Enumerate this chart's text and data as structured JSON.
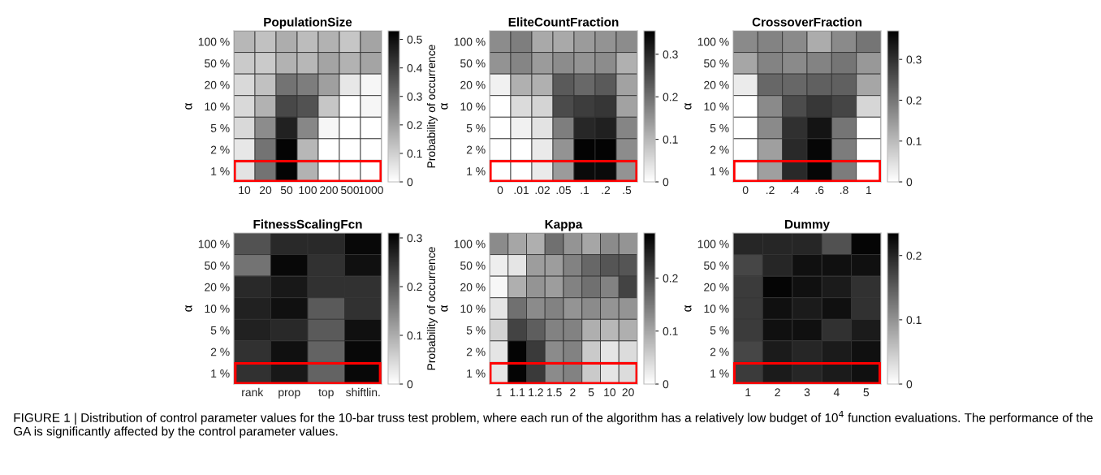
{
  "chart_data": [
    {
      "type": "heatmap",
      "title": "PopulationSize",
      "ylabel": "α",
      "clabel": "Probability of occurrence",
      "categories": [
        "10",
        "20",
        "50",
        "100",
        "200",
        "500",
        "1000"
      ],
      "y_categories": [
        "100 %",
        "50 %",
        "20 %",
        "10 %",
        "5 %",
        "2 %",
        "1 %"
      ],
      "cells": [
        [
          0.15,
          0.13,
          0.17,
          0.14,
          0.16,
          0.12,
          0.19
        ],
        [
          0.11,
          0.11,
          0.16,
          0.15,
          0.19,
          0.16,
          0.19
        ],
        [
          0.08,
          0.13,
          0.29,
          0.27,
          0.2,
          0.05,
          0.02
        ],
        [
          0.08,
          0.16,
          0.38,
          0.36,
          0.12,
          0,
          0.02
        ],
        [
          0.08,
          0.24,
          0.46,
          0.25,
          0.02,
          0,
          0
        ],
        [
          0.05,
          0.29,
          0.52,
          0.15,
          0,
          0,
          0
        ],
        [
          0.06,
          0.29,
          0.52,
          0.16,
          0,
          0,
          0
        ]
      ],
      "clim": [
        0,
        0.53
      ],
      "cticks": [
        0,
        0.1,
        0.2,
        0.3,
        0.4,
        0.5
      ],
      "annotations": [
        "FIGURE 1 | Distribution of control parameter values for the 10-bar truss test problem, where each run of the algorithm has a relatively low budget of 10$^{4}$ function evaluations. The performance of the GA is significantly affected by the control parameter values."
      ]
    },
    {
      "type": "heatmap",
      "title": "EliteCountFraction",
      "ylabel": "α",
      "categories": [
        "0",
        ".01",
        ".02",
        ".05",
        ".1",
        ".2",
        ".5"
      ],
      "y_categories": [
        "100 %",
        "50 %",
        "20 %",
        "10 %",
        "5 %",
        "2 %",
        "1 %"
      ],
      "cells": [
        [
          0.16,
          0.18,
          0.12,
          0.12,
          0.14,
          0.15,
          0.16
        ],
        [
          0.15,
          0.17,
          0.14,
          0.16,
          0.15,
          0.16,
          0.11
        ],
        [
          0.02,
          0.11,
          0.11,
          0.23,
          0.21,
          0.23,
          0.13
        ],
        [
          0,
          0.05,
          0.06,
          0.25,
          0.27,
          0.28,
          0.13
        ],
        [
          0,
          0.02,
          0.04,
          0.18,
          0.3,
          0.31,
          0.17
        ],
        [
          0,
          0,
          0.03,
          0.15,
          0.35,
          0.35,
          0.16
        ],
        [
          0,
          0,
          0.03,
          0.14,
          0.34,
          0.34,
          0.15
        ]
      ],
      "clim": [
        0,
        0.355
      ],
      "cticks": [
        0,
        0.1,
        0.2,
        0.3
      ]
    },
    {
      "type": "heatmap",
      "title": "CrossoverFraction",
      "ylabel": "α",
      "categories": [
        "0",
        ".2",
        ".4",
        ".6",
        ".8",
        "1"
      ],
      "y_categories": [
        "100 %",
        "50 %",
        "20 %",
        "10 %",
        "5 %",
        "2 %",
        "1 %"
      ],
      "cells": [
        [
          0.17,
          0.18,
          0.17,
          0.12,
          0.17,
          0.2
        ],
        [
          0.13,
          0.18,
          0.17,
          0.18,
          0.2,
          0.15
        ],
        [
          0.03,
          0.22,
          0.22,
          0.23,
          0.23,
          0.13
        ],
        [
          0,
          0.17,
          0.26,
          0.29,
          0.27,
          0.06
        ],
        [
          0,
          0.17,
          0.3,
          0.34,
          0.2,
          0
        ],
        [
          0,
          0.14,
          0.31,
          0.36,
          0.19,
          0
        ],
        [
          0,
          0.14,
          0.31,
          0.36,
          0.19,
          0
        ]
      ],
      "clim": [
        0,
        0.37
      ],
      "cticks": [
        0,
        0.1,
        0.2,
        0.3
      ]
    },
    {
      "type": "heatmap",
      "title": "FitnessScalingFcn",
      "ylabel": "α",
      "clabel": "Probability of occurrence",
      "categories": [
        "rank",
        "prop",
        "top",
        "shiftlin."
      ],
      "y_categories": [
        "100 %",
        "50 %",
        "20 %",
        "10 %",
        "5 %",
        "2 %",
        "1 %"
      ],
      "cells": [
        [
          0.21,
          0.26,
          0.26,
          0.3
        ],
        [
          0.17,
          0.3,
          0.25,
          0.29
        ],
        [
          0.26,
          0.28,
          0.25,
          0.25
        ],
        [
          0.27,
          0.29,
          0.2,
          0.25
        ],
        [
          0.27,
          0.26,
          0.2,
          0.29
        ],
        [
          0.25,
          0.29,
          0.19,
          0.3
        ],
        [
          0.25,
          0.28,
          0.19,
          0.3
        ]
      ],
      "clim": [
        0,
        0.31
      ],
      "cticks": [
        0,
        0.1,
        0.2,
        0.3
      ]
    },
    {
      "type": "heatmap",
      "title": "Kappa",
      "ylabel": "α",
      "categories": [
        "1",
        "1.1",
        "1.2",
        "1.5",
        "2",
        "5",
        "10",
        "20"
      ],
      "y_categories": [
        "100 %",
        "50 %",
        "20 %",
        "10 %",
        "5 %",
        "2 %",
        "1 %"
      ],
      "cells": [
        [
          0.13,
          0.1,
          0.09,
          0.16,
          0.12,
          0.1,
          0.13,
          0.12
        ],
        [
          0.02,
          0.03,
          0.11,
          0.11,
          0.14,
          0.17,
          0.19,
          0.19
        ],
        [
          0.01,
          0.09,
          0.12,
          0.11,
          0.14,
          0.16,
          0.14,
          0.21
        ],
        [
          0.03,
          0.16,
          0.13,
          0.14,
          0.12,
          0.13,
          0.12,
          0.12
        ],
        [
          0.05,
          0.21,
          0.18,
          0.14,
          0.14,
          0.09,
          0.08,
          0.09
        ],
        [
          0.03,
          0.28,
          0.22,
          0.13,
          0.14,
          0.06,
          0.03,
          0.04
        ],
        [
          0.03,
          0.28,
          0.22,
          0.13,
          0.14,
          0.06,
          0.03,
          0.04
        ]
      ],
      "clim": [
        0,
        0.285
      ],
      "cticks": [
        0,
        0.1,
        0.2
      ]
    },
    {
      "type": "heatmap",
      "title": "Dummy",
      "ylabel": "α",
      "categories": [
        "1",
        "2",
        "3",
        "4",
        "5"
      ],
      "y_categories": [
        "100 %",
        "50 %",
        "20 %",
        "10 %",
        "5 %",
        "2 %",
        "1 %"
      ],
      "cells": [
        [
          0.2,
          0.2,
          0.2,
          0.16,
          0.23
        ],
        [
          0.17,
          0.2,
          0.22,
          0.22,
          0.22
        ],
        [
          0.18,
          0.23,
          0.22,
          0.21,
          0.19
        ],
        [
          0.18,
          0.22,
          0.21,
          0.22,
          0.19
        ],
        [
          0.18,
          0.22,
          0.22,
          0.19,
          0.21
        ],
        [
          0.17,
          0.21,
          0.2,
          0.21,
          0.22
        ],
        [
          0.18,
          0.21,
          0.2,
          0.21,
          0.22
        ]
      ],
      "clim": [
        0,
        0.235
      ],
      "cticks": [
        0,
        0.1,
        0.2
      ]
    }
  ]
}
